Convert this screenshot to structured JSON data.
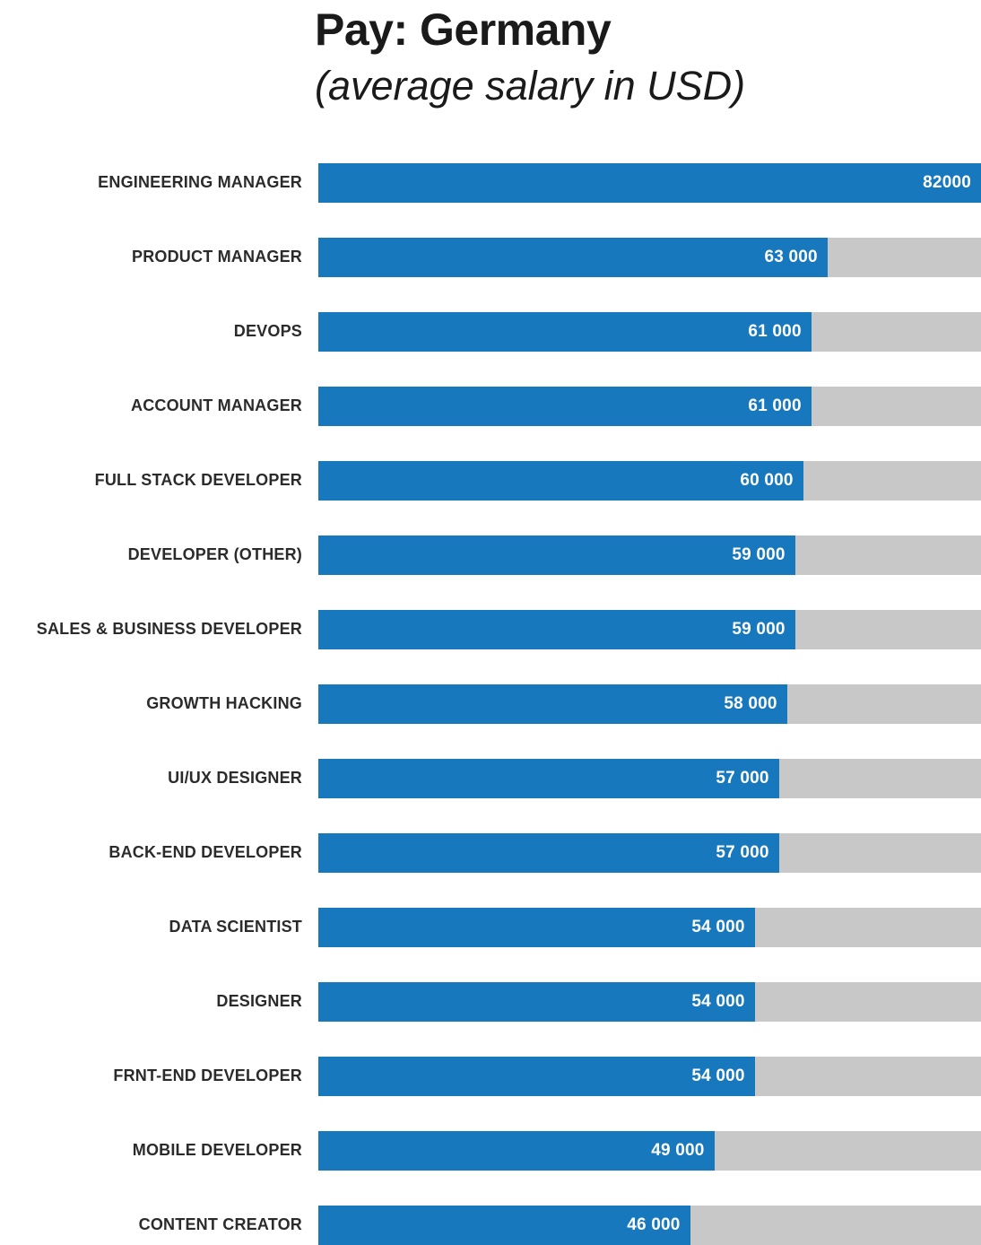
{
  "header": {
    "title": "Pay: Germany",
    "subtitle": "(average salary in USD)"
  },
  "colors": {
    "bar": "#1878BE",
    "track": "#C8C8C8",
    "label_text": "#2B2B2B",
    "title_text": "#1A1A1A",
    "value_text": "#FFFFFF"
  },
  "chart_data": {
    "type": "bar",
    "orientation": "horizontal",
    "title": "Pay: Germany",
    "subtitle": "(average salary in USD)",
    "xlabel": "",
    "ylabel": "",
    "xlim": [
      0,
      82000
    ],
    "grid": false,
    "legend": false,
    "categories": [
      "ENGINEERING MANAGER",
      "PRODUCT MANAGER",
      "DEVOPS",
      "ACCOUNT MANAGER",
      "FULL STACK DEVELOPER",
      "DEVELOPER (OTHER)",
      "SALES & BUSINESS DEVELOPER",
      "GROWTH HACKING",
      "UI/UX DESIGNER",
      "BACK-END DEVELOPER",
      "DATA SCIENTIST",
      "DESIGNER",
      "FRNT-END DEVELOPER",
      "MOBILE DEVELOPER",
      "CONTENT CREATOR"
    ],
    "values": [
      82000,
      63000,
      61000,
      61000,
      60000,
      59000,
      59000,
      58000,
      57000,
      57000,
      54000,
      54000,
      54000,
      49000,
      46000
    ],
    "value_labels": [
      "82000",
      "63 000",
      "61 000",
      "61 000",
      "60 000",
      "59 000",
      "59 000",
      "58 000",
      "57 000",
      "57 000",
      "54 000",
      "54 000",
      "54 000",
      "49 000",
      "46 000"
    ]
  }
}
